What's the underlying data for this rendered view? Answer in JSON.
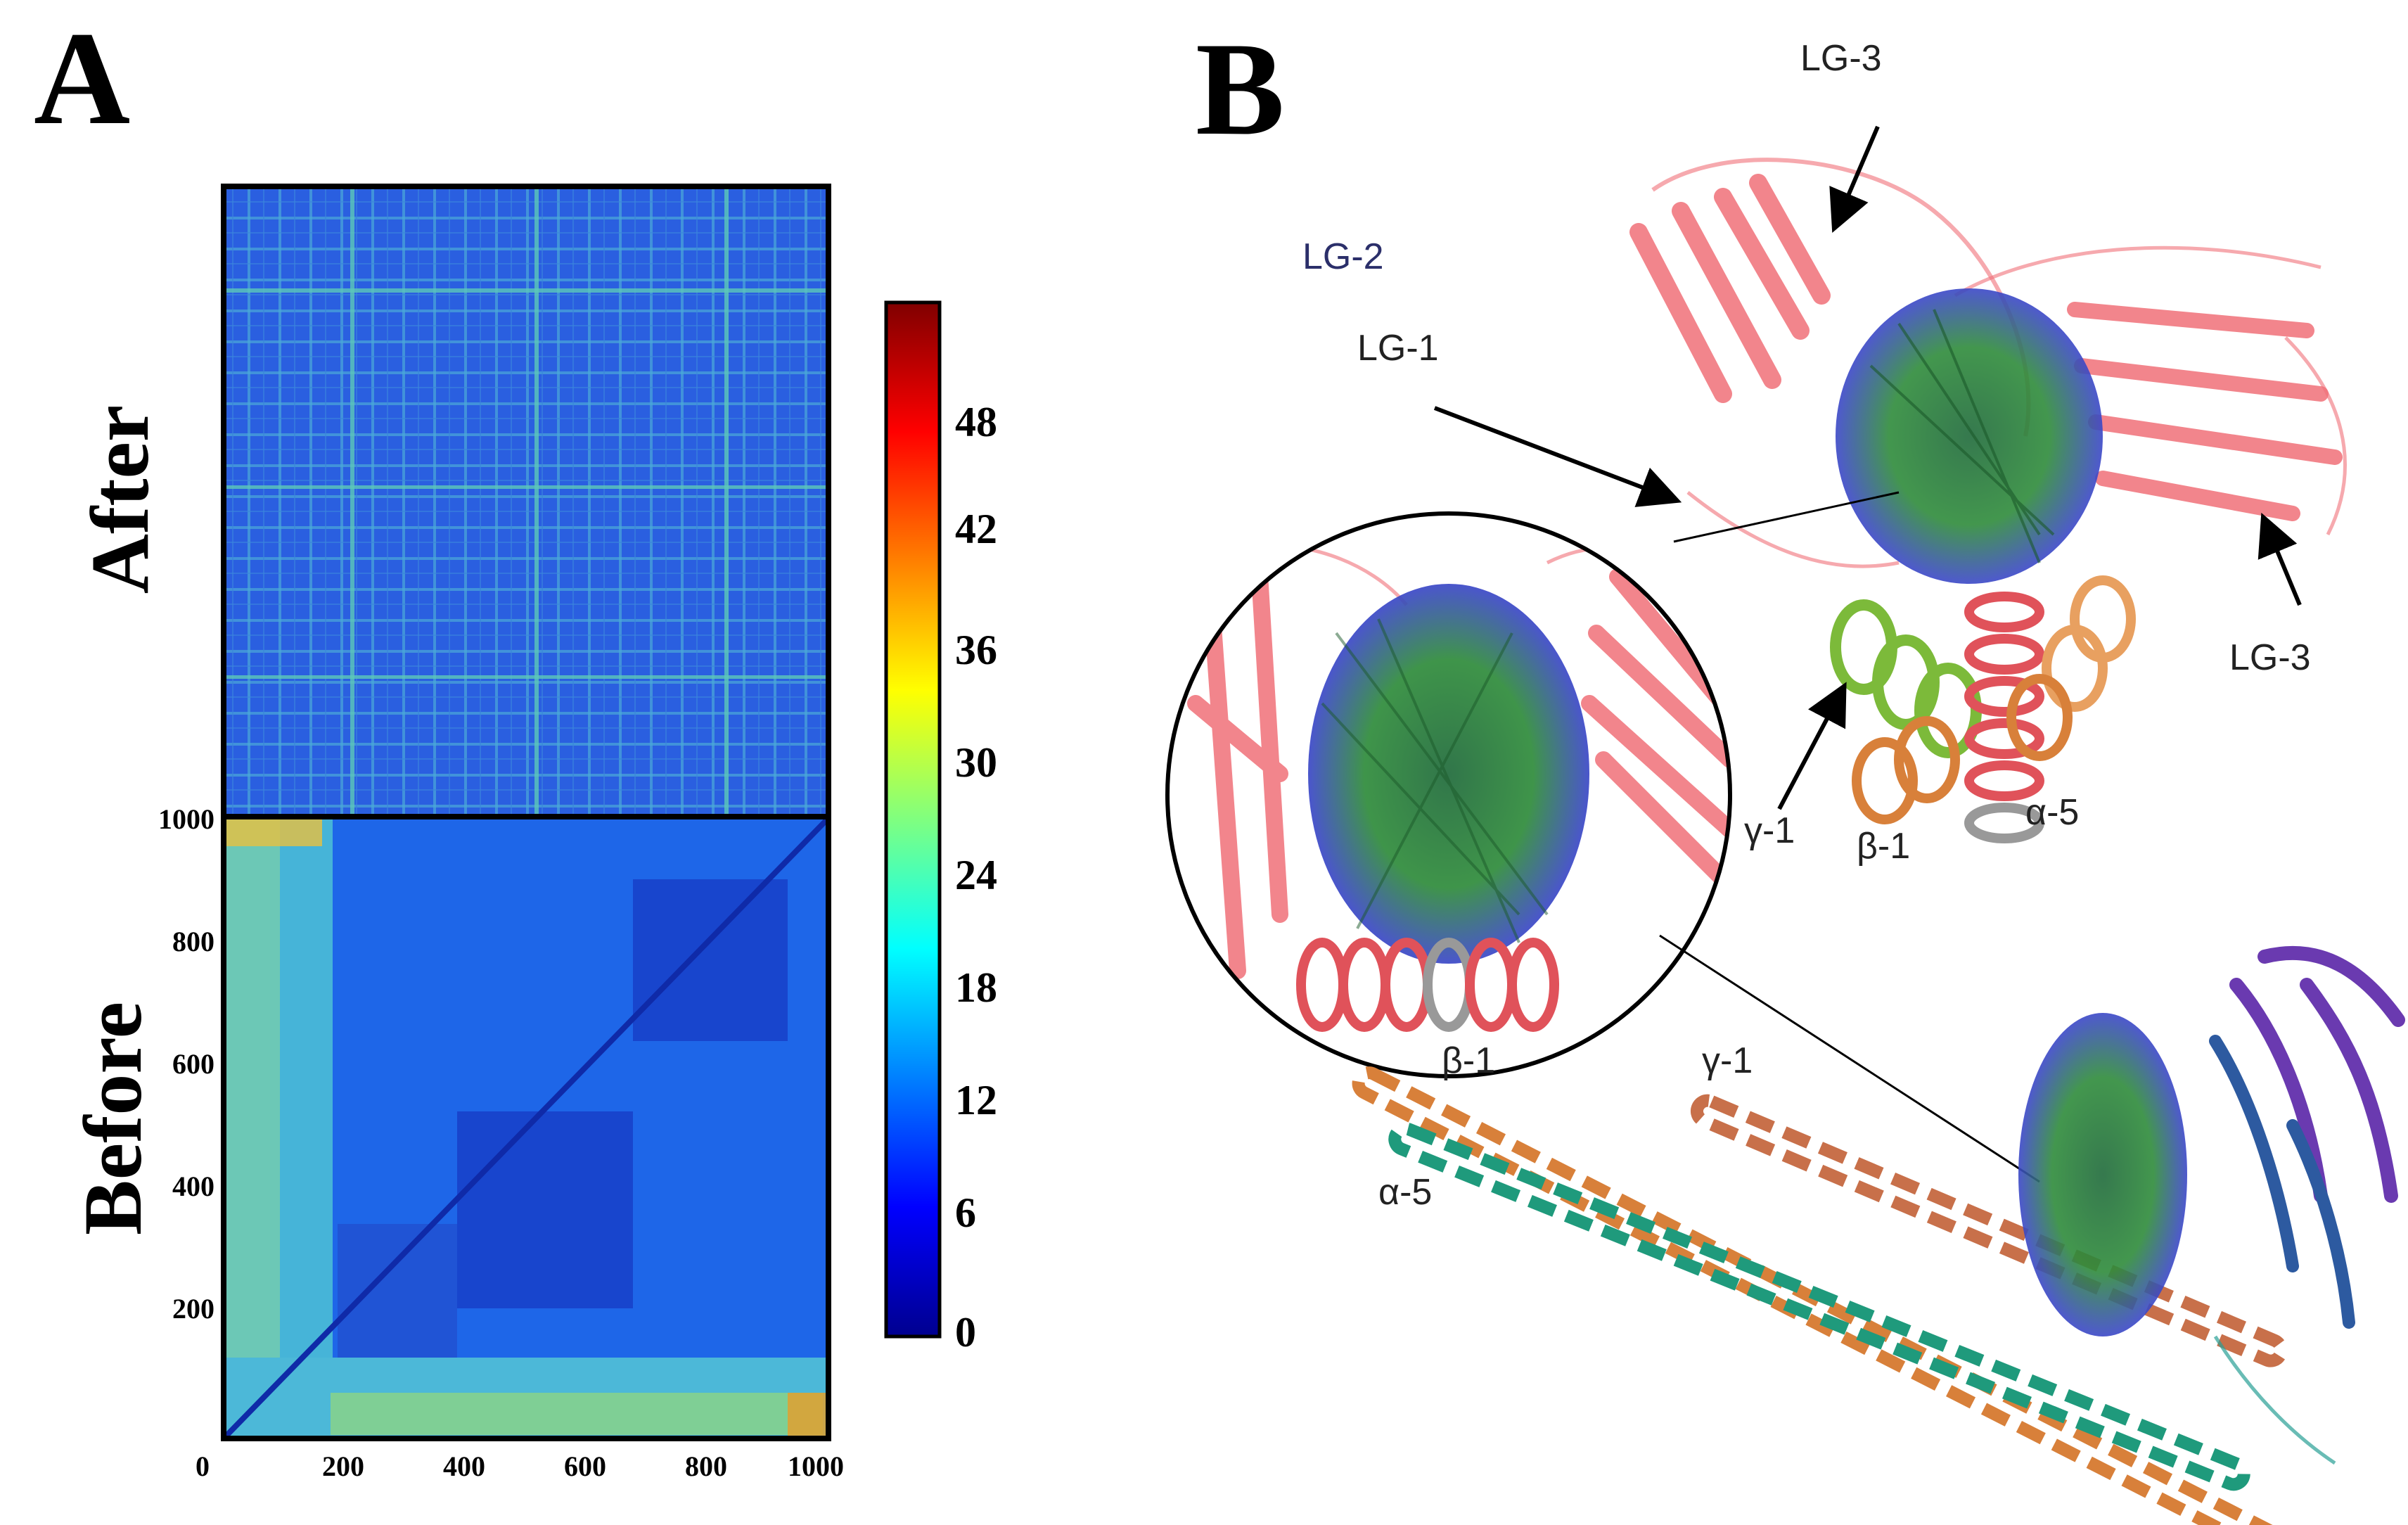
{
  "panels": {
    "a": {
      "letter": "A",
      "after_label": "After",
      "before_label": "Before",
      "x_ticks": [
        "0",
        "200",
        "400",
        "600",
        "800",
        "1000"
      ],
      "y_ticks": [
        "1000",
        "800",
        "600",
        "400",
        "200"
      ],
      "colorbar_ticks": [
        "48",
        "42",
        "36",
        "30",
        "24",
        "18",
        "12",
        "6",
        "0"
      ]
    },
    "b": {
      "letter": "B",
      "labels": {
        "lg3_top": "LG-3",
        "lg2": "LG-2",
        "lg1": "LG-1",
        "lg3_right": "LG-3",
        "gamma1_top": "γ-1",
        "beta1_top": "β-1",
        "alpha5_top": "α-5",
        "beta1_bottom": "β-1",
        "gamma1_bottom": "γ-1",
        "alpha5_bottom": "α-5"
      }
    }
  },
  "chart_data": {
    "type": "heatmap",
    "title": "",
    "xlabel": "",
    "ylabel": "",
    "xlim": [
      0,
      1000
    ],
    "ylim": [
      0,
      1000
    ],
    "colorbar_range": [
      0,
      54
    ],
    "sections": [
      {
        "name": "After",
        "mean_value_estimate": 14
      },
      {
        "name": "Before",
        "mean_value_estimate": 13
      }
    ]
  },
  "colors": {
    "helix_red": "#e0525a",
    "sheet_red": "#f07078",
    "mesh_green": "#2e8b3a",
    "mesh_blue": "#3b47c8",
    "helix_orange": "#d8803a",
    "helix_teal": "#1f9a7c",
    "sheet_purple": "#6a3ab0"
  }
}
